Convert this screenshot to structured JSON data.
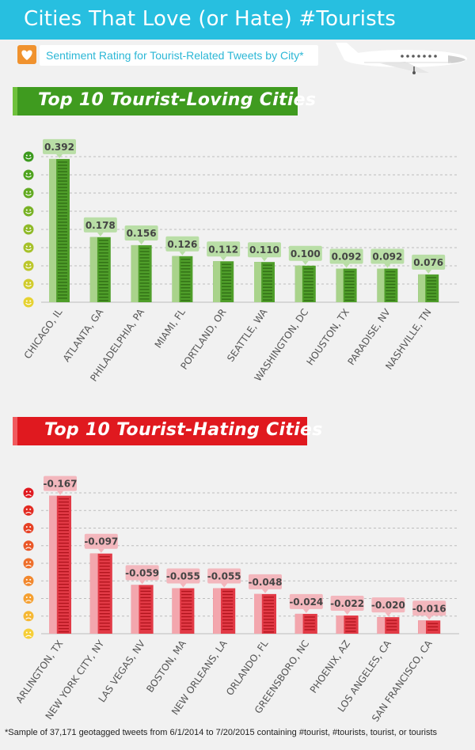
{
  "header": {
    "title": "Cities That Love (or Hate) #Tourists",
    "subtitle": "Sentiment Rating for Tourist-Related Tweets by City*",
    "heart_icon": "heart-icon",
    "plane_icon": "airplane-icon"
  },
  "colors": {
    "header_band": "#27bfe0",
    "love_green": "#3f9b1f",
    "hate_red": "#e0191f",
    "love_bar": "#4f9e2a",
    "hate_bar": "#e23a46"
  },
  "loving_section": {
    "banner": "Top 10 Tourist-Loving Cities",
    "face_icon": "smiley-face-icon"
  },
  "hating_section": {
    "banner": "Top 10 Tourist-Hating Cities",
    "face_icon": "sad-face-icon"
  },
  "footnote": "*Sample of 37,171 geotagged tweets from 6/1/2014 to 7/20/2015 containing #tourist, #tourists, tourist, or tourists",
  "chart_data": [
    {
      "type": "bar",
      "title": "Top 10 Tourist-Loving Cities",
      "categories": [
        "CHICAGO, IL",
        "ATLANTA, GA",
        "PHILADELPHIA, PA",
        "MIAMI, FL",
        "PORTLAND, OR",
        "SEATTLE, WA",
        "WASHINGTON, DC",
        "HOUSTON, TX",
        "PARADISE, NV",
        "NASHVILLE, TN"
      ],
      "values": [
        0.392,
        0.178,
        0.156,
        0.126,
        0.112,
        0.11,
        0.1,
        0.092,
        0.092,
        0.076
      ],
      "value_labels": [
        "0.392",
        "0.178",
        "0.156",
        "0.126",
        "0.112",
        "0.110",
        "0.100",
        "0.092",
        "0.092",
        "0.076"
      ],
      "ylim": [
        0,
        0.42
      ],
      "grid": true,
      "xlabel": "",
      "ylabel": ""
    },
    {
      "type": "bar",
      "title": "Top 10 Tourist-Hating Cities",
      "categories": [
        "ARLINGTON, TX",
        "NEW YORK CITY, NY",
        "LAS VEGAS, NV",
        "BOSTON, MA",
        "NEW ORLEANS, LA",
        "ORLANDO, FL",
        "GREENSBORO, NC",
        "PHOENIX, AZ",
        "LOS ANGELES, CA",
        "SAN FRANCISCO, CA"
      ],
      "values": [
        -0.167,
        -0.097,
        -0.059,
        -0.055,
        -0.055,
        -0.048,
        -0.024,
        -0.022,
        -0.02,
        -0.016
      ],
      "value_labels": [
        "-0.167",
        "-0.097",
        "-0.059",
        "-0.055",
        "-0.055",
        "-0.048",
        "-0.024",
        "-0.022",
        "-0.020",
        "-0.016"
      ],
      "ylim": [
        0,
        -0.18
      ],
      "grid": true,
      "xlabel": "",
      "ylabel": ""
    }
  ]
}
